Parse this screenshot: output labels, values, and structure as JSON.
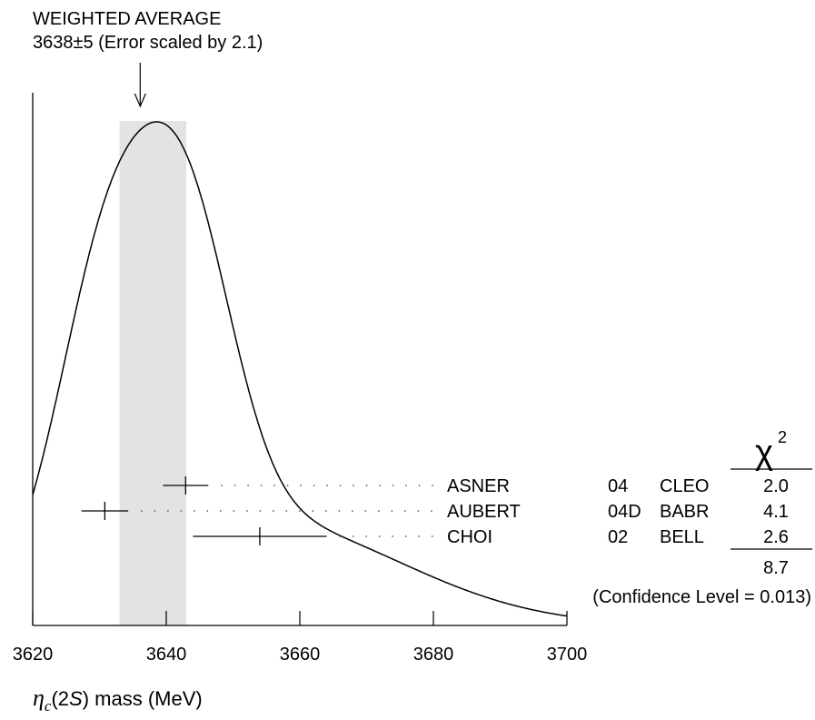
{
  "chart_data": {
    "type": "ideogram",
    "title": "WEIGHTED AVERAGE",
    "subtitle": "3638±5 (Error scaled by 2.1)",
    "average": {
      "value": 3638,
      "error": 5
    },
    "xlim": [
      3620,
      3700
    ],
    "x_ticks": [
      3620,
      3640,
      3660,
      3680,
      3700
    ],
    "x_tick_labels": [
      "3620",
      "3640",
      "3660",
      "3680",
      "3700"
    ],
    "xlabel": {
      "prefix": "η",
      "sub": "c",
      "middle": "(2",
      "italic": "S",
      "suffix": ") mass (MeV)"
    },
    "measurements": [
      {
        "author": "ASNER",
        "year": "04",
        "experiment": "CLEO",
        "value": 3642.9,
        "error": 3.4,
        "chi2": "2.0"
      },
      {
        "author": "AUBERT",
        "year": "04D",
        "experiment": "BABR",
        "value": 3630.8,
        "error": 3.5,
        "chi2": "4.1"
      },
      {
        "author": "CHOI",
        "year": "02",
        "experiment": "BELL",
        "value": 3654.0,
        "error": 10.0,
        "chi2": "2.6"
      }
    ],
    "chi2_header": {
      "symbol": "χ",
      "power": "2"
    },
    "chi2_total": "8.7",
    "confidence_level": "(Confidence Level = 0.013)",
    "colors": {
      "line": "#000000",
      "band": "#e3e3e3",
      "dots": "#555555"
    }
  }
}
